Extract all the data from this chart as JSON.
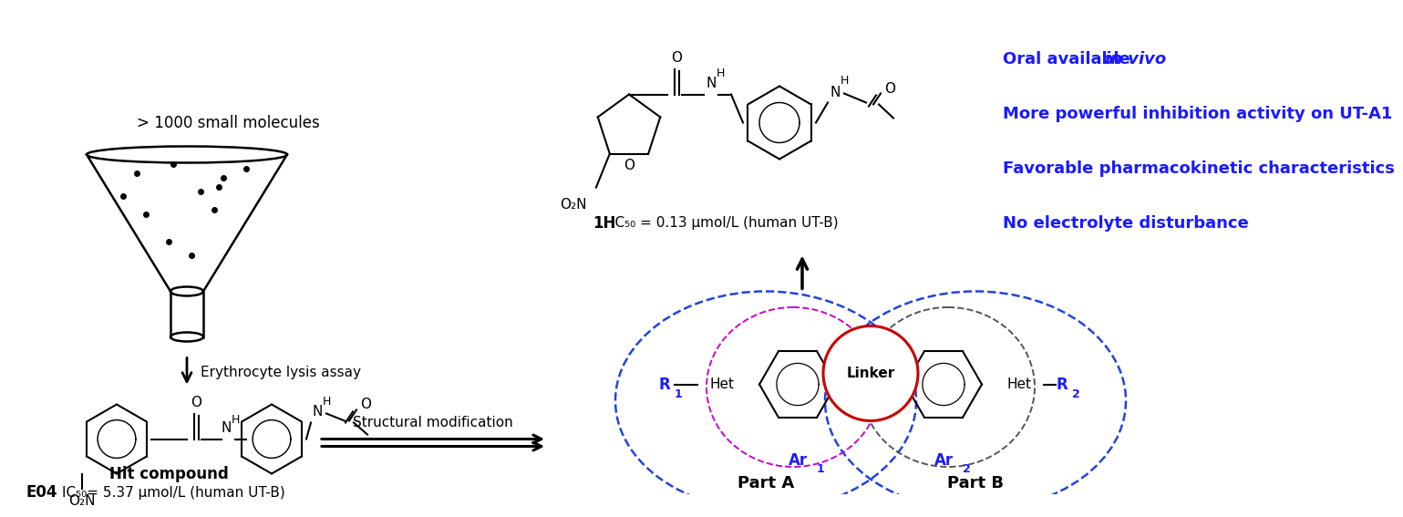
{
  "bg_color": "#ffffff",
  "blue_color": "#1a1aff",
  "black": "#000000",
  "red_color": "#cc0000",
  "bullet_points": [
    "Oral available ",
    "More powerful inhibition activity on UT-A1",
    "Favorable pharmacokinetic characteristics",
    "No electrolyte disturbance"
  ],
  "italic_parts": [
    "in vivo",
    "",
    "",
    ""
  ],
  "top_label": "> 1000 small molecules",
  "arrow1_label": "Erythrocyte lysis assay",
  "arrow2_label": "Structural modification",
  "hit_compound_label": "Hit compound",
  "e04_bold": "E04",
  "e04_ic50": "IC₅₀= 5.37 μmol/L (human UT-B)",
  "1h_bold": "1H",
  "1h_ic50": "IC₅₀ = 0.13 μmol/L (human UT-B)",
  "part_a_label": "Part A",
  "part_b_label": "Part B",
  "linker_label": "Linker"
}
